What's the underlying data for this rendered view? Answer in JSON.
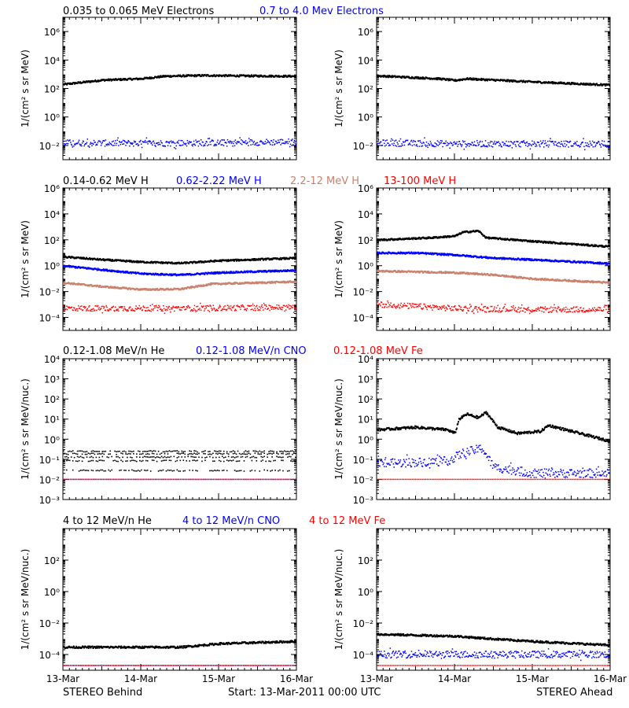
{
  "footer": {
    "left": "STEREO Behind",
    "center": "Start: 13-Mar-2011 00:00 UTC",
    "right": "STEREO Ahead"
  },
  "rows": [
    {
      "legend": [
        {
          "text": "0.035 to 0.065 MeV Electrons",
          "color": "#000000"
        },
        {
          "text": "0.7 to 4.0 Mev Electrons",
          "color": "#0000ff"
        }
      ]
    },
    {
      "legend": [
        {
          "text": "0.14-0.62 MeV H",
          "color": "#000000"
        },
        {
          "text": "0.62-2.22 MeV H",
          "color": "#0000ff"
        },
        {
          "text": "2.2-12 MeV H",
          "color": "#c8826e"
        },
        {
          "text": "13-100 MeV H",
          "color": "#ff0000"
        }
      ]
    },
    {
      "legend": [
        {
          "text": "0.12-1.08 MeV/n He",
          "color": "#000000"
        },
        {
          "text": "0.12-1.08 MeV/n CNO",
          "color": "#0000ff"
        },
        {
          "text": "0.12-1.08 MeV Fe",
          "color": "#ff0000"
        }
      ]
    },
    {
      "legend": [
        {
          "text": "4 to 12 MeV/n He",
          "color": "#000000"
        },
        {
          "text": "4 to 12 MeV/n CNO",
          "color": "#0000ff"
        },
        {
          "text": "4 to 12 MeV Fe",
          "color": "#ff0000"
        }
      ]
    }
  ],
  "chart_data": [
    {
      "type": "scatter",
      "title": "",
      "row": 0,
      "col": 0,
      "ylabel": "1/(cm² s sr MeV)",
      "yscale": "log",
      "ylim": [
        0.001,
        10000000
      ],
      "yticks": [
        0.01,
        1,
        100,
        10000,
        1000000
      ],
      "ytick_labels": [
        "10⁻²",
        "10⁰",
        "10²",
        "10⁴",
        "10⁶"
      ],
      "xlim": [
        0,
        3
      ],
      "xticks": [
        0,
        1,
        2,
        3
      ],
      "xtick_labels": [
        "13-Mar",
        "14-Mar",
        "15-Mar",
        "16-Mar"
      ],
      "series": [
        {
          "name": "0.035 to 0.065 MeV Electrons",
          "color": "#000000",
          "style": "dense",
          "points": [
            [
              0,
              200
            ],
            [
              0.5,
              400
            ],
            [
              1,
              500
            ],
            [
              1.3,
              750
            ],
            [
              1.8,
              850
            ],
            [
              2.3,
              800
            ],
            [
              3,
              750
            ]
          ]
        },
        {
          "name": "0.7 to 4.0 Mev Electrons",
          "color": "#0000ff",
          "style": "scatter",
          "points": [
            [
              0,
              0.015
            ],
            [
              1,
              0.014
            ],
            [
              2,
              0.015
            ],
            [
              3,
              0.018
            ]
          ]
        }
      ]
    },
    {
      "type": "scatter",
      "title": "",
      "row": 0,
      "col": 1,
      "ylabel": "1/(cm² s sr MeV)",
      "yscale": "log",
      "ylim": [
        0.001,
        10000000
      ],
      "yticks": [
        0.01,
        1,
        100,
        10000,
        1000000
      ],
      "ytick_labels": [
        "10⁻²",
        "10⁰",
        "10²",
        "10⁴",
        "10⁶"
      ],
      "xlim": [
        0,
        3
      ],
      "xticks": [
        0,
        1,
        2,
        3
      ],
      "xtick_labels": [
        "13-Mar",
        "14-Mar",
        "15-Mar",
        "16-Mar"
      ],
      "series": [
        {
          "name": "0.035 to 0.065 MeV Electrons",
          "color": "#000000",
          "style": "dense",
          "points": [
            [
              0,
              800
            ],
            [
              0.8,
              500
            ],
            [
              1.0,
              380
            ],
            [
              1.15,
              500
            ],
            [
              2,
              300
            ],
            [
              3,
              180
            ]
          ]
        },
        {
          "name": "0.7 to 4.0 Mev Electrons",
          "color": "#0000ff",
          "style": "scatter",
          "points": [
            [
              0,
              0.015
            ],
            [
              1,
              0.013
            ],
            [
              2,
              0.013
            ],
            [
              3,
              0.012
            ]
          ]
        }
      ]
    },
    {
      "type": "scatter",
      "title": "",
      "row": 1,
      "col": 0,
      "ylabel": "1/(cm² s sr MeV)",
      "yscale": "log",
      "ylim": [
        1e-05,
        1000000
      ],
      "yticks": [
        0.0001,
        0.01,
        1,
        100,
        10000,
        1000000
      ],
      "ytick_labels": [
        "10⁻⁴",
        "10⁻²",
        "10⁰",
        "10²",
        "10⁴",
        "10⁶"
      ],
      "xlim": [
        0,
        3
      ],
      "xticks": [
        0,
        1,
        2,
        3
      ],
      "xtick_labels": [
        "13-Mar",
        "14-Mar",
        "15-Mar",
        "16-Mar"
      ],
      "series": [
        {
          "name": "0.14-0.62 MeV H",
          "color": "#000000",
          "style": "dense",
          "points": [
            [
              0,
              5
            ],
            [
              0.5,
              3
            ],
            [
              1,
              2
            ],
            [
              1.5,
              1.6
            ],
            [
              2,
              2.5
            ],
            [
              3,
              4
            ]
          ]
        },
        {
          "name": "0.62-2.22 MeV H",
          "color": "#0000ff",
          "style": "dense",
          "points": [
            [
              0,
              1
            ],
            [
              0.5,
              0.5
            ],
            [
              1,
              0.25
            ],
            [
              1.5,
              0.2
            ],
            [
              2,
              0.3
            ],
            [
              3,
              0.45
            ]
          ]
        },
        {
          "name": "2.2-12 MeV H",
          "color": "#c8826e",
          "style": "dense",
          "points": [
            [
              0,
              0.05
            ],
            [
              0.5,
              0.025
            ],
            [
              1,
              0.015
            ],
            [
              1.5,
              0.016
            ],
            [
              1.9,
              0.04
            ],
            [
              2.5,
              0.05
            ],
            [
              3,
              0.06
            ]
          ]
        },
        {
          "name": "13-100 MeV H",
          "color": "#ff0000",
          "style": "scatter",
          "points": [
            [
              0,
              0.0005
            ],
            [
              1.5,
              0.0005
            ],
            [
              3,
              0.0006
            ]
          ]
        }
      ]
    },
    {
      "type": "scatter",
      "title": "",
      "row": 1,
      "col": 1,
      "ylabel": "1/(cm² s sr MeV)",
      "yscale": "log",
      "ylim": [
        1e-05,
        1000000
      ],
      "yticks": [
        0.0001,
        0.01,
        1,
        100,
        10000,
        1000000
      ],
      "ytick_labels": [
        "10⁻⁴",
        "10⁻²",
        "10⁰",
        "10²",
        "10⁴",
        "10⁶"
      ],
      "xlim": [
        0,
        3
      ],
      "xticks": [
        0,
        1,
        2,
        3
      ],
      "xtick_labels": [
        "13-Mar",
        "14-Mar",
        "15-Mar",
        "16-Mar"
      ],
      "series": [
        {
          "name": "0.14-0.62 MeV H",
          "color": "#000000",
          "style": "dense",
          "points": [
            [
              0,
              100
            ],
            [
              0.7,
              150
            ],
            [
              1.0,
              200
            ],
            [
              1.1,
              400
            ],
            [
              1.3,
              500
            ],
            [
              1.4,
              150
            ],
            [
              2,
              80
            ],
            [
              3,
              30
            ]
          ]
        },
        {
          "name": "0.62-2.22 MeV H",
          "color": "#0000ff",
          "style": "dense",
          "points": [
            [
              0,
              10
            ],
            [
              0.5,
              10
            ],
            [
              1,
              7
            ],
            [
              1.5,
              4
            ],
            [
              2,
              3
            ],
            [
              3,
              1.5
            ]
          ]
        },
        {
          "name": "2.2-12 MeV H",
          "color": "#c8826e",
          "style": "dense",
          "points": [
            [
              0,
              0.4
            ],
            [
              1,
              0.3
            ],
            [
              1.5,
              0.2
            ],
            [
              2,
              0.1
            ],
            [
              3,
              0.05
            ]
          ]
        },
        {
          "name": "13-100 MeV H",
          "color": "#ff0000",
          "style": "scatter",
          "points": [
            [
              0,
              0.001
            ],
            [
              1,
              0.0005
            ],
            [
              2,
              0.0004
            ],
            [
              3,
              0.0004
            ]
          ]
        }
      ]
    },
    {
      "type": "scatter",
      "title": "",
      "row": 2,
      "col": 0,
      "ylabel": "1/(cm² s sr MeV/nuc.)",
      "yscale": "log",
      "ylim": [
        0.001,
        10000
      ],
      "yticks": [
        0.001,
        0.01,
        0.1,
        1,
        10,
        100,
        1000,
        10000
      ],
      "ytick_labels": [
        "10⁻³",
        "10⁻²",
        "10⁻¹",
        "10⁰",
        "10¹",
        "10²",
        "10³",
        "10⁴"
      ],
      "xlim": [
        0,
        3
      ],
      "xticks": [
        0,
        1,
        2,
        3
      ],
      "xtick_labels": [
        "13-Mar",
        "14-Mar",
        "15-Mar",
        "16-Mar"
      ],
      "series": [
        {
          "name": "0.12-1.08 MeV/n He",
          "color": "#000000",
          "style": "levels",
          "levels": [
            0.028,
            0.085,
            0.13,
            0.19,
            0.25
          ]
        },
        {
          "name": "0.12-1.08 MeV/n CNO",
          "color": "#0000ff",
          "style": "flat",
          "points": [
            [
              0,
              0.01
            ],
            [
              3,
              0.01
            ]
          ]
        },
        {
          "name": "0.12-1.08 MeV Fe",
          "color": "#ff0000",
          "style": "flat",
          "points": [
            [
              0,
              0.01
            ],
            [
              3,
              0.01
            ]
          ]
        }
      ]
    },
    {
      "type": "scatter",
      "title": "",
      "row": 2,
      "col": 1,
      "ylabel": "1/(cm² s sr MeV/nuc.)",
      "yscale": "log",
      "ylim": [
        0.001,
        10000
      ],
      "yticks": [
        0.001,
        0.01,
        0.1,
        1,
        10,
        100,
        1000,
        10000
      ],
      "ytick_labels": [
        "10⁻³",
        "10⁻²",
        "10⁻¹",
        "10⁰",
        "10¹",
        "10²",
        "10³",
        "10⁴"
      ],
      "xlim": [
        0,
        3
      ],
      "xticks": [
        0,
        1,
        2,
        3
      ],
      "xtick_labels": [
        "13-Mar",
        "14-Mar",
        "15-Mar",
        "16-Mar"
      ],
      "series": [
        {
          "name": "0.12-1.08 MeV/n He",
          "color": "#000000",
          "style": "dense",
          "points": [
            [
              0,
              3
            ],
            [
              0.5,
              4
            ],
            [
              0.9,
              3
            ],
            [
              1.0,
              2
            ],
            [
              1.05,
              10
            ],
            [
              1.15,
              18
            ],
            [
              1.3,
              12
            ],
            [
              1.4,
              22
            ],
            [
              1.55,
              4
            ],
            [
              1.8,
              2
            ],
            [
              2.1,
              2.5
            ],
            [
              2.2,
              5
            ],
            [
              2.5,
              2.5
            ],
            [
              3,
              0.8
            ]
          ]
        },
        {
          "name": "0.12-1.08 MeV/n CNO",
          "color": "#0000ff",
          "style": "scatter",
          "points": [
            [
              0,
              0.06
            ],
            [
              0.9,
              0.08
            ],
            [
              1.1,
              0.2
            ],
            [
              1.35,
              0.35
            ],
            [
              1.5,
              0.04
            ],
            [
              2,
              0.02
            ],
            [
              3,
              0.02
            ]
          ]
        },
        {
          "name": "0.12-1.08 MeV Fe",
          "color": "#ff0000",
          "style": "flat",
          "points": [
            [
              0,
              0.01
            ],
            [
              3,
              0.01
            ]
          ]
        }
      ]
    },
    {
      "type": "scatter",
      "title": "",
      "row": 3,
      "col": 0,
      "ylabel": "1/(cm² s sr MeV/nuc.)",
      "yscale": "log",
      "ylim": [
        1e-05,
        10000
      ],
      "yticks": [
        0.0001,
        0.01,
        1,
        100
      ],
      "ytick_labels": [
        "10⁻⁴",
        "10⁻²",
        "10⁰",
        "10²"
      ],
      "xlim": [
        0,
        3
      ],
      "xticks": [
        0,
        1,
        2,
        3
      ],
      "xtick_labels": [
        "13-Mar",
        "14-Mar",
        "15-Mar",
        "16-Mar"
      ],
      "series": [
        {
          "name": "4 to 12 MeV/n He",
          "color": "#000000",
          "style": "dense",
          "points": [
            [
              0,
              0.0003
            ],
            [
              1,
              0.0003
            ],
            [
              1.5,
              0.0003
            ],
            [
              2,
              0.0005
            ],
            [
              3,
              0.0007
            ]
          ]
        },
        {
          "name": "4 to 12 MeV/n CNO",
          "color": "#0000ff",
          "style": "flat",
          "points": [
            [
              0,
              2e-05
            ],
            [
              3,
              2e-05
            ]
          ]
        },
        {
          "name": "4 to 12 MeV Fe",
          "color": "#ff0000",
          "style": "flat",
          "points": [
            [
              0,
              2e-05
            ],
            [
              3,
              2e-05
            ]
          ]
        }
      ]
    },
    {
      "type": "scatter",
      "title": "",
      "row": 3,
      "col": 1,
      "ylabel": "1/(cm² s sr MeV/nuc.)",
      "yscale": "log",
      "ylim": [
        1e-05,
        10000
      ],
      "yticks": [
        0.0001,
        0.01,
        1,
        100
      ],
      "ytick_labels": [
        "10⁻⁴",
        "10⁻²",
        "10⁰",
        "10²"
      ],
      "xlim": [
        0,
        3
      ],
      "xticks": [
        0,
        1,
        2,
        3
      ],
      "xtick_labels": [
        "13-Mar",
        "14-Mar",
        "15-Mar",
        "16-Mar"
      ],
      "series": [
        {
          "name": "4 to 12 MeV/n He",
          "color": "#000000",
          "style": "dense",
          "points": [
            [
              0,
              0.002
            ],
            [
              1,
              0.0015
            ],
            [
              1.5,
              0.001
            ],
            [
              2,
              0.0007
            ],
            [
              3,
              0.0004
            ]
          ]
        },
        {
          "name": "4 to 12 MeV/n CNO",
          "color": "#0000ff",
          "style": "scatter",
          "points": [
            [
              0,
              0.0001
            ],
            [
              1,
              0.0001
            ],
            [
              2,
              0.0001
            ],
            [
              3,
              0.0001
            ]
          ]
        },
        {
          "name": "4 to 12 MeV Fe",
          "color": "#ff0000",
          "style": "flat",
          "points": [
            [
              0,
              2e-05
            ],
            [
              3,
              2e-05
            ]
          ]
        }
      ]
    }
  ]
}
